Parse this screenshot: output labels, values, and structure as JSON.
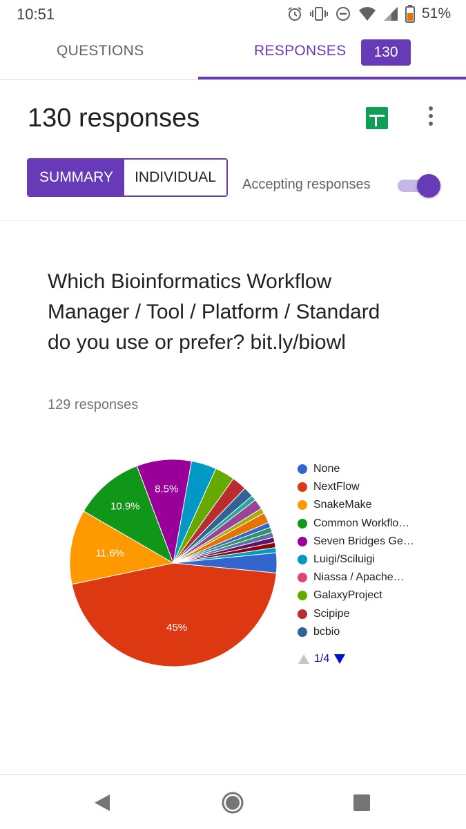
{
  "status_bar": {
    "time": "10:51",
    "battery": "51%",
    "icons": [
      "alarm-icon",
      "vibrate-icon",
      "do-not-disturb-icon",
      "wifi-icon",
      "signal-icon",
      "battery-icon"
    ]
  },
  "tabs": {
    "questions": "QUESTIONS",
    "responses": "RESPONSES",
    "responses_count": "130"
  },
  "header": {
    "responses_title": "130 responses"
  },
  "segmented": {
    "summary": "SUMMARY",
    "individual": "INDIVIDUAL"
  },
  "accepting": {
    "label": "Accepting responses",
    "enabled": true
  },
  "question": {
    "title": "Which Bioinformatics Workflow Manager / Tool / Platform / Standard do you use or prefer? bit.ly/biowl",
    "responses": "129 responses"
  },
  "chart_data": {
    "type": "pie",
    "slices": [
      {
        "label": "NextFlow",
        "value": 45.0,
        "color": "#dc3912",
        "label_text": "45%"
      },
      {
        "label": "SnakeMake",
        "value": 11.6,
        "color": "#ff9900",
        "label_text": "11.6%"
      },
      {
        "label": "Common Workflo…",
        "value": 10.9,
        "color": "#109618",
        "label_text": "10.9%"
      },
      {
        "label": "Seven Bridges Ge…",
        "value": 8.5,
        "color": "#990099",
        "label_text": "8.5%"
      },
      {
        "label": "Luigi/Sciluigi",
        "value": 3.9,
        "color": "#0099c6",
        "label_text": ""
      },
      {
        "label": "GalaxyProject",
        "value": 3.1,
        "color": "#66aa00",
        "label_text": ""
      },
      {
        "label": "Scipipe",
        "value": 2.3,
        "color": "#b82e2e",
        "label_text": ""
      },
      {
        "label": "bcbio",
        "value": 1.6,
        "color": "#316395",
        "label_text": ""
      },
      {
        "label": "",
        "value": 0.8,
        "color": "#22aa99",
        "label_text": ""
      },
      {
        "label": "",
        "value": 1.6,
        "color": "#994499",
        "label_text": ""
      },
      {
        "label": "",
        "value": 0.8,
        "color": "#aaaa11",
        "label_text": ""
      },
      {
        "label": "",
        "value": 1.6,
        "color": "#e67300",
        "label_text": ""
      },
      {
        "label": "",
        "value": 0.8,
        "color": "#3366cc",
        "label_text": ""
      },
      {
        "label": "",
        "value": 0.8,
        "color": "#329262",
        "label_text": ""
      },
      {
        "label": "",
        "value": 0.8,
        "color": "#5574a6",
        "label_text": ""
      },
      {
        "label": "",
        "value": 0.8,
        "color": "#651067",
        "label_text": ""
      },
      {
        "label": "",
        "value": 0.8,
        "color": "#8b0707",
        "label_text": ""
      },
      {
        "label": "",
        "value": 0.8,
        "color": "#0099c6",
        "label_text": ""
      },
      {
        "label": "None",
        "value": 3.1,
        "color": "#3366cc",
        "label_text": ""
      }
    ],
    "legend": [
      {
        "label": "None",
        "color": "#3366cc"
      },
      {
        "label": "NextFlow",
        "color": "#dc3912"
      },
      {
        "label": "SnakeMake",
        "color": "#ff9900"
      },
      {
        "label": "Common Workflo…",
        "color": "#109618"
      },
      {
        "label": "Seven Bridges Ge…",
        "color": "#990099"
      },
      {
        "label": "Luigi/Sciluigi",
        "color": "#0099c6"
      },
      {
        "label": "Niassa / Apache…",
        "color": "#dd4477"
      },
      {
        "label": "GalaxyProject",
        "color": "#66aa00"
      },
      {
        "label": "Scipipe",
        "color": "#b82e2e"
      },
      {
        "label": "bcbio",
        "color": "#316395"
      }
    ],
    "legend_position": "right",
    "pager": "1/4"
  },
  "nav_bar": {
    "icons": [
      "back-icon",
      "home-icon",
      "recents-icon"
    ]
  }
}
